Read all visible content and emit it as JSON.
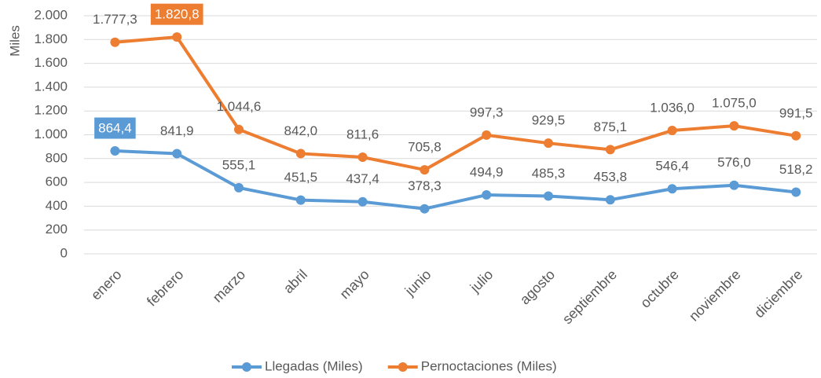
{
  "chart_data": {
    "type": "line",
    "y_label": "Miles",
    "categories": [
      "enero",
      "febrero",
      "marzo",
      "abril",
      "mayo",
      "junio",
      "julio",
      "agosto",
      "septiembre",
      "octubre",
      "noviembre",
      "diciembre"
    ],
    "series": [
      {
        "name": "Llegadas (Miles)",
        "color": "#5b9bd5",
        "values": [
          864.4,
          841.9,
          555.1,
          451.5,
          437.4,
          378.3,
          494.9,
          485.3,
          453.8,
          546.4,
          576.0,
          518.2
        ],
        "value_labels": [
          "864,4",
          "841,9",
          "555,1",
          "451,5",
          "437,4",
          "378,3",
          "494,9",
          "485,3",
          "453,8",
          "546,4",
          "576,0",
          "518,2"
        ]
      },
      {
        "name": "Pernoctaciones (Miles)",
        "color": "#ed7d31",
        "values": [
          1777.3,
          1820.8,
          1044.6,
          842.0,
          811.6,
          705.8,
          997.3,
          929.5,
          875.1,
          1036.0,
          1075.0,
          991.5
        ],
        "value_labels": [
          "1.777,3",
          "1.820,8",
          "1.044,6",
          "842,0",
          "811,6",
          "705,8",
          "997,3",
          "929,5",
          "875,1",
          "1.036,0",
          "1.075,0",
          "991,5"
        ]
      }
    ],
    "ylim": [
      0,
      2000
    ],
    "yticks": [
      0,
      200,
      400,
      600,
      800,
      {
        "value": 1000,
        "label": "1.000"
      },
      {
        "value": 1200,
        "label": "1.200"
      },
      {
        "value": 1400,
        "label": "1.400"
      },
      {
        "value": 1600,
        "label": "1.600"
      },
      {
        "value": 1800,
        "label": "1.800"
      },
      {
        "value": 2000,
        "label": "2.000"
      }
    ],
    "grid": true,
    "legend": "bottom"
  }
}
